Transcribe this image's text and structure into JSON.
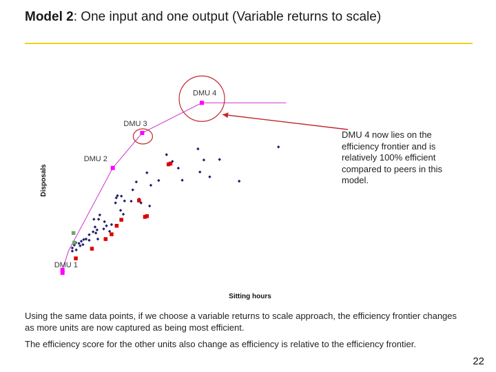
{
  "slide": {
    "title_bold": "Model 2",
    "title_rest": ": One input and one output (Variable returns to scale)",
    "callout": "DMU 4 now lies on the efficiency frontier and is relatively 100% efficient compared to peers in this model.",
    "paragraph1": "Using the same data points, if we choose a variable returns to scale approach, the efficiency frontier changes as more units are now captured as being most efficient.",
    "paragraph2": "The efficiency score for the other units also change as efficiency is relative to the efficiency frontier.",
    "page_number": "22"
  },
  "colors": {
    "accent_rule": "#f2d21b",
    "frontier": "#cc33cc",
    "frontier_dmu": "#ff00ff",
    "dmu_point": "#1a1a6e",
    "red_point": "#dd0000",
    "green_point": "#66aa66",
    "highlight_circle": "#c0282e"
  },
  "chart_data": {
    "type": "scatter",
    "xlabel": "Sitting hours",
    "ylabel": "Disposals",
    "xlim": [
      0,
      1000
    ],
    "ylim": [
      0,
      1000
    ],
    "series": [
      {
        "role": "units",
        "marker": "diamond",
        "color": "#1a1a6e",
        "points": [
          [
            35,
            130
          ],
          [
            35,
            143
          ],
          [
            40,
            155
          ],
          [
            44,
            165
          ],
          [
            45,
            135
          ],
          [
            52,
            162
          ],
          [
            55,
            152
          ],
          [
            58,
            171
          ],
          [
            62,
            157
          ],
          [
            64,
            178
          ],
          [
            70,
            180
          ],
          [
            78,
            175
          ],
          [
            78,
            198
          ],
          [
            88,
            210
          ],
          [
            90,
            262
          ],
          [
            93,
            230
          ],
          [
            95,
            205
          ],
          [
            98,
            218
          ],
          [
            100,
            180
          ],
          [
            102,
            262
          ],
          [
            105,
            280
          ],
          [
            115,
            222
          ],
          [
            117,
            252
          ],
          [
            122,
            235
          ],
          [
            130,
            212
          ],
          [
            135,
            240
          ],
          [
            145,
            330
          ],
          [
            147,
            351
          ],
          [
            150,
            360
          ],
          [
            158,
            299
          ],
          [
            160,
            358
          ],
          [
            165,
            283
          ],
          [
            168,
            338
          ],
          [
            185,
            337
          ],
          [
            189,
            384
          ],
          [
            198,
            417
          ],
          [
            205,
            346
          ],
          [
            210,
            330
          ],
          [
            225,
            455
          ],
          [
            232,
            317
          ],
          [
            235,
            403
          ],
          [
            255,
            423
          ],
          [
            275,
            530
          ],
          [
            290,
            502
          ],
          [
            305,
            474
          ],
          [
            315,
            424
          ],
          [
            355,
            554
          ],
          [
            360,
            458
          ],
          [
            370,
            508
          ],
          [
            385,
            438
          ],
          [
            410,
            510
          ],
          [
            460,
            420
          ],
          [
            560,
            562
          ]
        ]
      },
      {
        "role": "units-red",
        "marker": "square",
        "color": "#dd0000",
        "points": [
          [
            44,
            100
          ],
          [
            85,
            140
          ],
          [
            120,
            180
          ],
          [
            135,
            200
          ],
          [
            148,
            235
          ],
          [
            160,
            260
          ],
          [
            205,
            340
          ],
          [
            220,
            272
          ],
          [
            225,
            275
          ],
          [
            280,
            490
          ],
          [
            285,
            493
          ]
        ]
      },
      {
        "role": "units-green",
        "marker": "square",
        "color": "#66aa66",
        "points": [
          [
            38,
            205
          ],
          [
            40,
            165
          ]
        ]
      },
      {
        "role": "frontier-dmus",
        "marker": "square",
        "color": "#ff00ff",
        "points": [
          [
            10,
            52
          ],
          [
            10,
            40
          ],
          [
            138,
            475
          ],
          [
            213,
            620
          ],
          [
            365,
            745
          ]
        ]
      },
      {
        "role": "frontier",
        "type": "line",
        "color": "#cc33cc",
        "points": [
          [
            10,
            40
          ],
          [
            10,
            52
          ],
          [
            25,
            130
          ],
          [
            138,
            475
          ],
          [
            213,
            620
          ],
          [
            365,
            745
          ],
          [
            580,
            745
          ]
        ]
      }
    ],
    "annotations": [
      {
        "text": "DMU 1",
        "at": [
          10,
          52
        ]
      },
      {
        "text": "DMU 2",
        "at": [
          138,
          475
        ]
      },
      {
        "text": "DMU 3",
        "at": [
          213,
          620
        ]
      },
      {
        "text": "DMU 4",
        "at": [
          365,
          745
        ]
      }
    ]
  }
}
